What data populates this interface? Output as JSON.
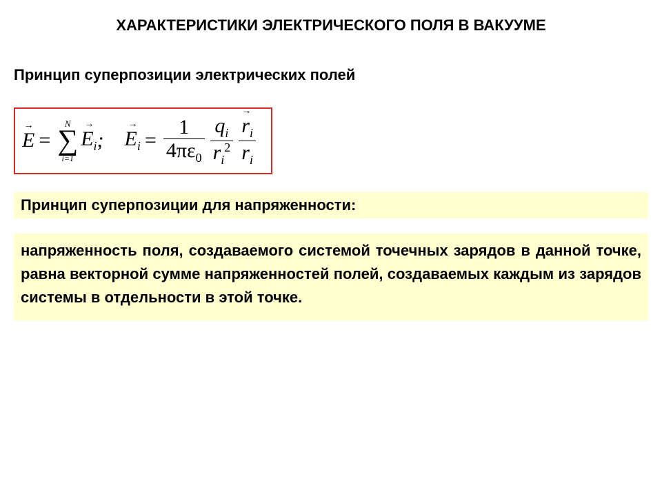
{
  "title": "ХАРАКТЕРИСТИКИ ЭЛЕКТРИЧЕСКОГО ПОЛЯ В ВАКУУМЕ",
  "subtitle": "Принцип суперпозиции электрических полей",
  "heading2": "Принцип суперпозиции для напряженности:",
  "body": "напряженность поля, создаваемого системой точечных зарядов в данной точке, равна векторной сумме напряженностей полей, создаваемых каждым из зарядов системы в отдельности в этой точке.",
  "formula": {
    "sum_upper": "N",
    "sum_lower": "i=1",
    "E": "E",
    "Ei": "E",
    "Ei_sub": "i",
    "one": "1",
    "four_pi_eps": "4πε",
    "eps_sub": "0",
    "q": "q",
    "q_sub": "i",
    "r": "r",
    "r_sub": "i",
    "r_sup": "2",
    "semicolon": ";"
  },
  "colors": {
    "highlight_bg": "#ffffcf",
    "border": "#d62828",
    "text": "#000000",
    "page_bg": "#ffffff"
  }
}
